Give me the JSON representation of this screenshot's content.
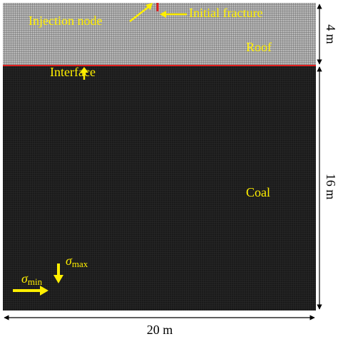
{
  "labels": {
    "injection_node": "Injection node",
    "initial_fracture": "Initial fracture",
    "roof": "Roof",
    "interface": "Interface",
    "coal": "Coal",
    "sigma_max": {
      "symbol": "σ",
      "subscript": "max"
    },
    "sigma_min": {
      "symbol": "σ",
      "subscript": "min"
    }
  },
  "dimensions": {
    "roof_height": "4 m",
    "coal_height": "16 m",
    "width": "20 m"
  }
}
